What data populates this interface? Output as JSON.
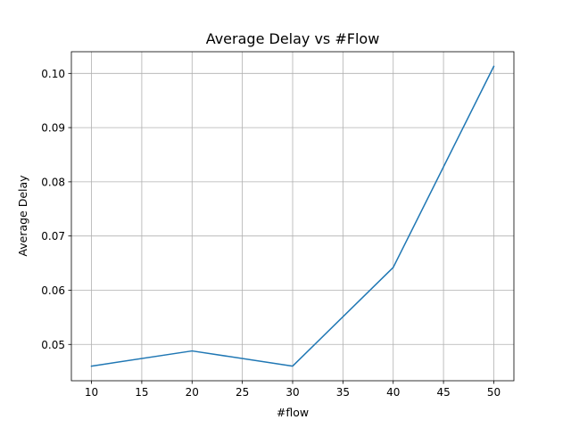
{
  "chart_data": {
    "type": "line",
    "title": "Average Delay vs #Flow",
    "xlabel": "#flow",
    "ylabel": "Average Delay",
    "x": [
      10,
      20,
      30,
      40,
      50
    ],
    "series": [
      {
        "values": [
          0.046,
          0.0488,
          0.046,
          0.0642,
          0.1013
        ]
      }
    ],
    "xlim": [
      8,
      52
    ],
    "ylim": [
      0.0433,
      0.104
    ],
    "xticks": [
      10,
      15,
      20,
      25,
      30,
      35,
      40,
      45,
      50
    ],
    "xtick_labels": [
      "10",
      "15",
      "20",
      "25",
      "30",
      "35",
      "40",
      "45",
      "50"
    ],
    "yticks": [
      0.05,
      0.06,
      0.07,
      0.08,
      0.09,
      0.1
    ],
    "ytick_labels": [
      "0.05",
      "0.06",
      "0.07",
      "0.08",
      "0.09",
      "0.10"
    ],
    "grid": true,
    "colors": {
      "line": "#1f77b4",
      "grid": "#b0b0b0",
      "axes": "#000000"
    }
  }
}
